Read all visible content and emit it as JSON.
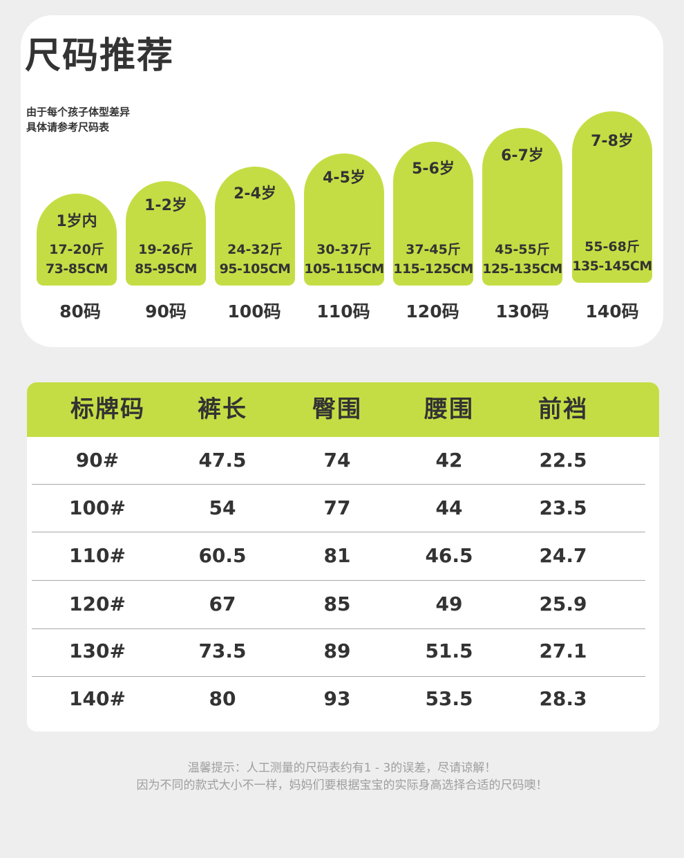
{
  "title": "尺码推荐",
  "subtitle_lines": [
    "由于每个孩子体型差异",
    "具体请参考尺码表"
  ],
  "sizes": [
    {
      "age": "1岁内",
      "weight": "17-20斤",
      "height": "73-85CM",
      "code": "80码"
    },
    {
      "age": "1-2岁",
      "weight": "19-26斤",
      "height": "85-95CM",
      "code": "90码"
    },
    {
      "age": "2-4岁",
      "weight": "24-32斤",
      "height": "95-105CM",
      "code": "100码"
    },
    {
      "age": "4-5岁",
      "weight": "30-37斤",
      "height": "105-115CM",
      "code": "110码"
    },
    {
      "age": "5-6岁",
      "weight": "37-45斤",
      "height": "115-125CM",
      "code": "120码"
    },
    {
      "age": "6-7岁",
      "weight": "45-55斤",
      "height": "125-135CM",
      "code": "130码"
    },
    {
      "age": "7-8岁",
      "weight": "55-68斤",
      "height": "135-145CM",
      "code": "140码"
    }
  ],
  "table": {
    "headers": [
      "标牌码",
      "裤长",
      "臀围",
      "腰围",
      "前裆"
    ],
    "rows": [
      [
        "90#",
        "47.5",
        "74",
        "42",
        "22.5"
      ],
      [
        "100#",
        "54",
        "77",
        "44",
        "23.5"
      ],
      [
        "110#",
        "60.5",
        "81",
        "46.5",
        "24.7"
      ],
      [
        "120#",
        "67",
        "85",
        "49",
        "25.9"
      ],
      [
        "130#",
        "73.5",
        "89",
        "51.5",
        "27.1"
      ],
      [
        "140#",
        "80",
        "93",
        "53.5",
        "28.3"
      ]
    ]
  },
  "notes": [
    "温馨提示：人工测量的尺码表约有1 - 3的误差，尽请谅解！",
    "因为不同的款式大小不一样，妈妈们要根据宝宝的实际身高选择合适的尺码噢！"
  ],
  "colors": {
    "accent": "#c5dd44",
    "page_bg": "#eeeeee",
    "card_bg": "#ffffff",
    "text": "#333333",
    "note_text": "#9e9e9e"
  }
}
